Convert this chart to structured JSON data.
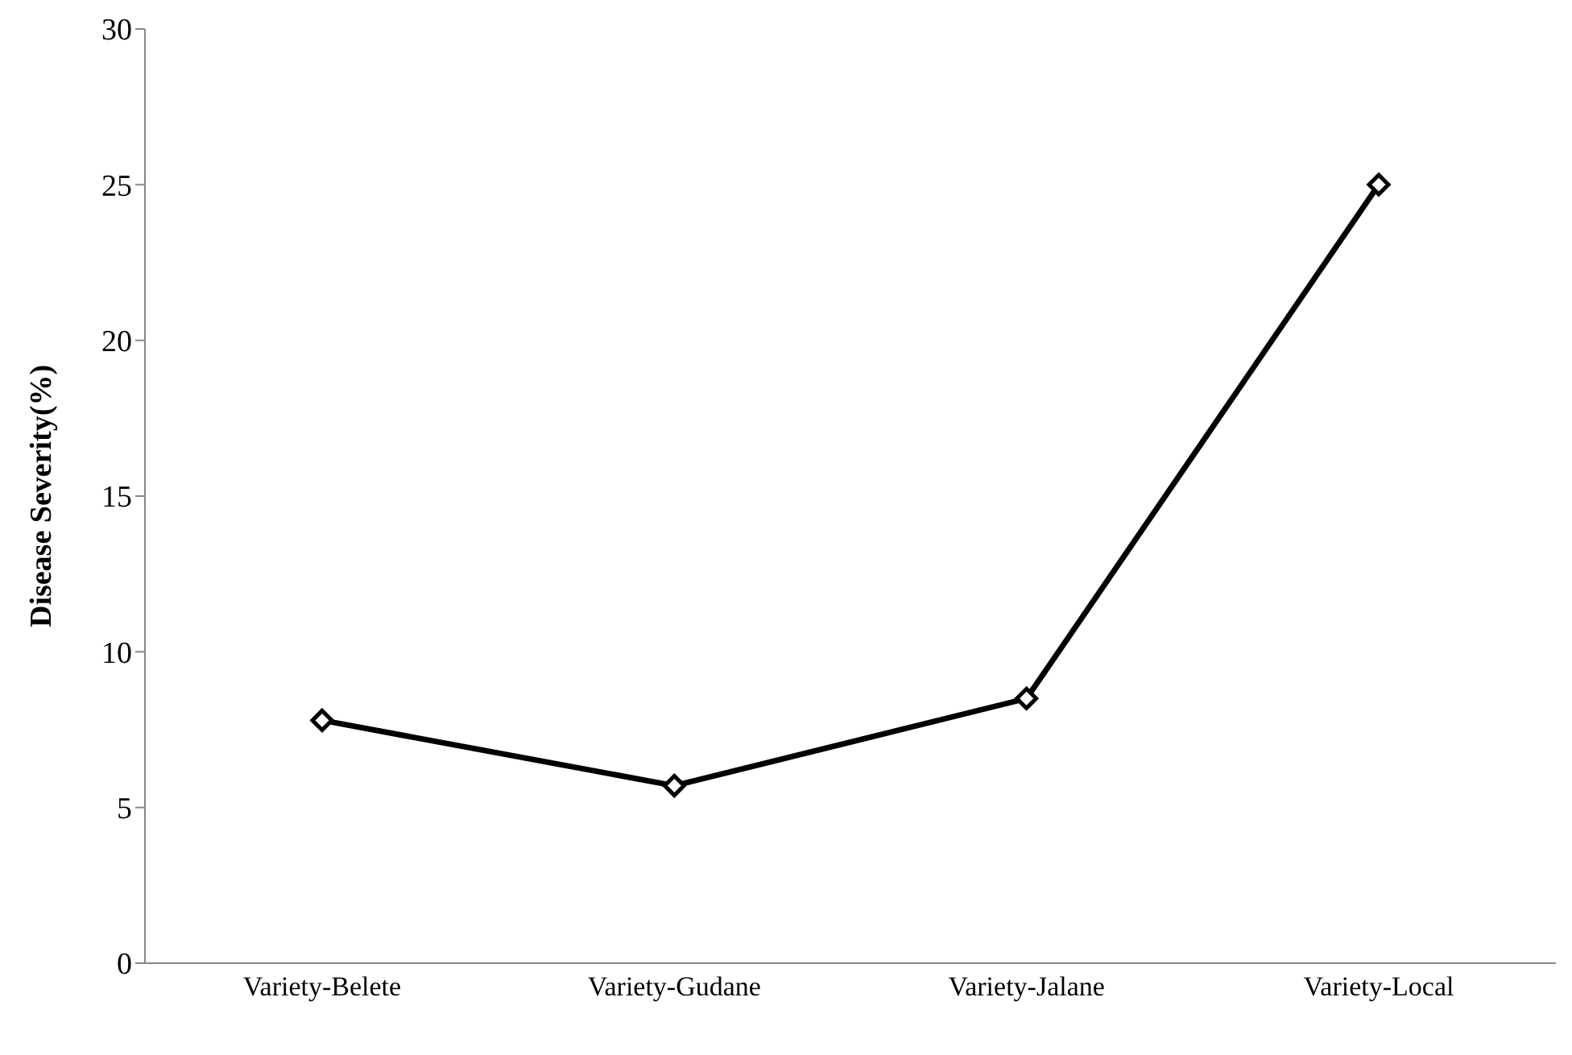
{
  "chart_data": {
    "type": "line",
    "ylabel": "Disease Severity(%)",
    "categories": [
      "Variety-Belete",
      "Variety-Gudane",
      "Variety-Jalane",
      "Variety-Local"
    ],
    "series": [
      {
        "color": "#000000",
        "values": [
          7.8,
          5.7,
          8.5,
          25.0
        ]
      }
    ],
    "ylim": [
      0,
      30
    ],
    "yticks": [
      0,
      5,
      10,
      15,
      20,
      25,
      30
    ],
    "grid": false,
    "legend": false,
    "marker": "diamond",
    "line_style": "solid"
  }
}
